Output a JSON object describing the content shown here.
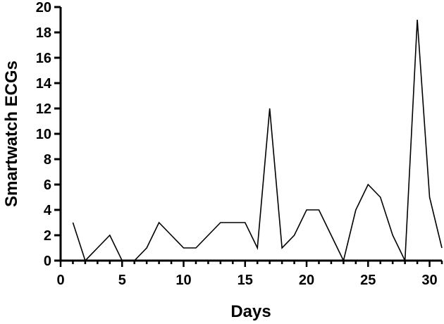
{
  "chart_data": {
    "type": "line",
    "title": "",
    "xlabel": "Days",
    "ylabel": "Smartwatch ECGs",
    "xlim": [
      0,
      31
    ],
    "ylim": [
      0,
      20
    ],
    "x_ticks": [
      0,
      5,
      10,
      15,
      20,
      25,
      30
    ],
    "y_ticks": [
      0,
      2,
      4,
      6,
      8,
      10,
      12,
      14,
      16,
      18,
      20
    ],
    "grid": false,
    "legend": "none",
    "line_color": "#000000",
    "series": [
      {
        "x": [
          1,
          2,
          3,
          4,
          5,
          6,
          7,
          8,
          9,
          10,
          11,
          12,
          13,
          14,
          15,
          16,
          17,
          18,
          19,
          20,
          21,
          22,
          23,
          24,
          25,
          26,
          27,
          28,
          29,
          30,
          31
        ],
        "values": [
          3,
          0,
          1,
          2,
          0,
          0,
          1,
          3,
          2,
          1,
          1,
          2,
          3,
          3,
          3,
          1,
          12,
          1,
          2,
          4,
          4,
          2,
          0,
          4,
          6,
          5,
          2,
          0,
          19,
          5,
          1
        ]
      }
    ]
  }
}
